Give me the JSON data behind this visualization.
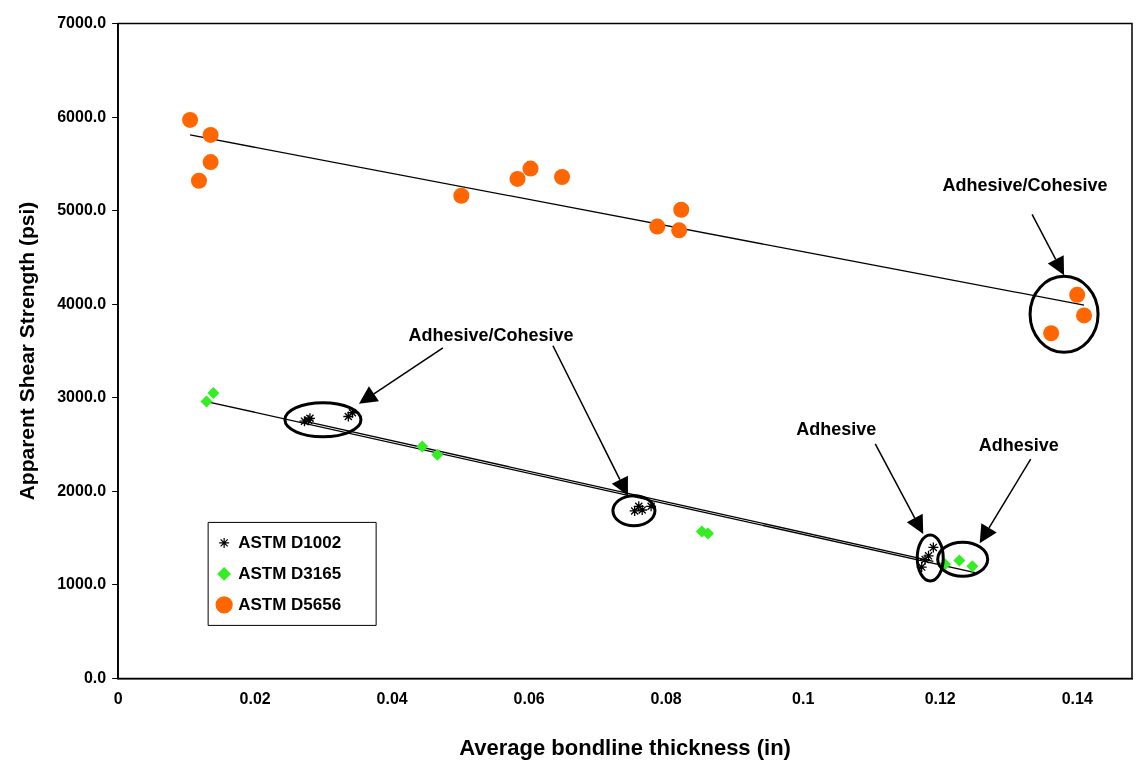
{
  "chart_data": {
    "type": "scatter",
    "xlabel": "Average bondline thickness (in)",
    "ylabel": "Apparent Shear Strength (psi)",
    "xlim": [
      0,
      0.148
    ],
    "xticks": [
      0,
      0.02,
      0.04,
      0.06,
      0.08,
      0.1,
      0.12,
      0.14
    ],
    "ylim": [
      0,
      7000
    ],
    "yticks": [
      {
        "value": 0,
        "label": "0.0"
      },
      {
        "value": 1000,
        "label": "1000.0"
      },
      {
        "value": 2000,
        "label": "2000.0"
      },
      {
        "value": 3000,
        "label": "3000.0"
      },
      {
        "value": 4000,
        "label": "4000.0"
      },
      {
        "value": 5000,
        "label": "5000.0"
      },
      {
        "value": 6000,
        "label": "6000.0"
      },
      {
        "value": 7000,
        "label": "7000.0"
      }
    ],
    "grid": false,
    "legend": "bottom left",
    "series": [
      {
        "name": "ASTM D1002",
        "type": "scatter",
        "marker": "cross",
        "color": "#000000",
        "x": [
          0.0272,
          0.0278,
          0.028,
          0.0336,
          0.0342,
          0.0754,
          0.076,
          0.0765,
          0.0778,
          0.1173,
          0.1178,
          0.1183,
          0.119
        ],
        "values": [
          2750,
          2760,
          2780,
          2800,
          2840,
          1790,
          1840,
          1800,
          1840,
          1190,
          1270,
          1310,
          1400
        ]
      },
      {
        "name": "ASTM D3165",
        "type": "scatter",
        "marker": "diamond",
        "color": "#33ee22",
        "x": [
          0.0129,
          0.0139,
          0.0444,
          0.0466,
          0.0852,
          0.0861,
          0.1207,
          0.1228,
          0.1247
        ],
        "values": [
          2960,
          3050,
          2480,
          2390,
          1570,
          1550,
          1220,
          1260,
          1200
        ]
      },
      {
        "name": "ASTM D5656",
        "type": "scatter",
        "marker": "circle",
        "color": "#ff6600",
        "x": [
          0.0105,
          0.0135,
          0.0135,
          0.0118,
          0.0501,
          0.0583,
          0.0602,
          0.0648,
          0.0787,
          0.0819,
          0.0822,
          0.1362,
          0.14,
          0.141
        ],
        "values": [
          5970,
          5810,
          5520,
          5320,
          5160,
          5340,
          5450,
          5360,
          4830,
          4790,
          5010,
          3690,
          4100,
          3880
        ]
      },
      {
        "type": "line",
        "marker": "none",
        "color": "#000000",
        "x": [
          0.0272,
          0.119
        ],
        "values": [
          2750,
          1250
        ]
      },
      {
        "type": "line",
        "marker": "none",
        "color": "#000000",
        "x": [
          0.0129,
          0.1251
        ],
        "values": [
          2960,
          1130
        ]
      },
      {
        "type": "line",
        "marker": "none",
        "color": "#000000",
        "x": [
          0.0105,
          0.141
        ],
        "values": [
          5810,
          3990
        ]
      }
    ],
    "annotations": [
      "Adhesive/Cohesive",
      "Adhesive/Cohesive",
      "Adhesive",
      "Adhesive"
    ]
  }
}
